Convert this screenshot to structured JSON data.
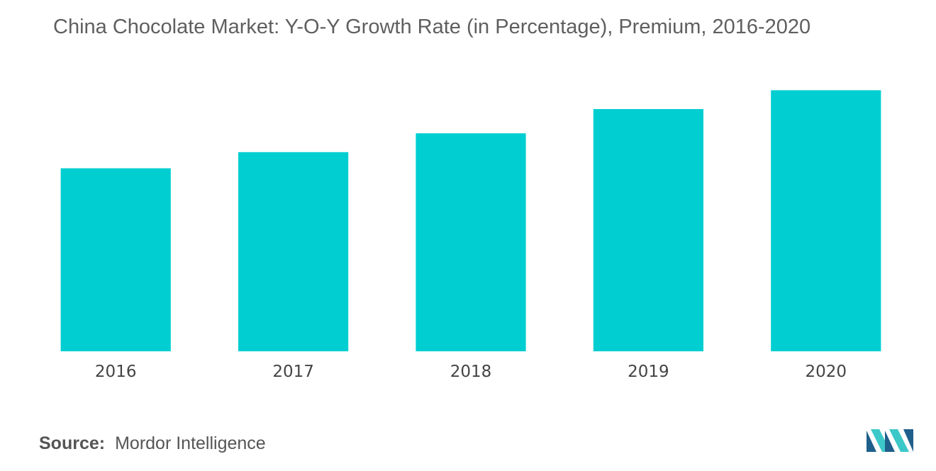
{
  "title": "China Chocolate Market: Y-O-Y Growth Rate (in Percentage), Premium, 2016-2020",
  "source": {
    "key": "Source:",
    "value": "Mordor Intelligence"
  },
  "logo": {
    "icon": "mordor-intelligence-logo-icon"
  },
  "colors": {
    "bar": "#00CED1",
    "logo_dark": "#1f5f8b",
    "logo_light": "#3cc8c8"
  },
  "chart_data": {
    "type": "bar",
    "categories": [
      "2016",
      "2017",
      "2018",
      "2019",
      "2020"
    ],
    "values": [
      6.8,
      7.4,
      8.1,
      9.0,
      9.7
    ],
    "xlabel": "",
    "ylabel": "",
    "ylim": [
      0,
      12
    ],
    "grid": false,
    "legend": "none"
  }
}
